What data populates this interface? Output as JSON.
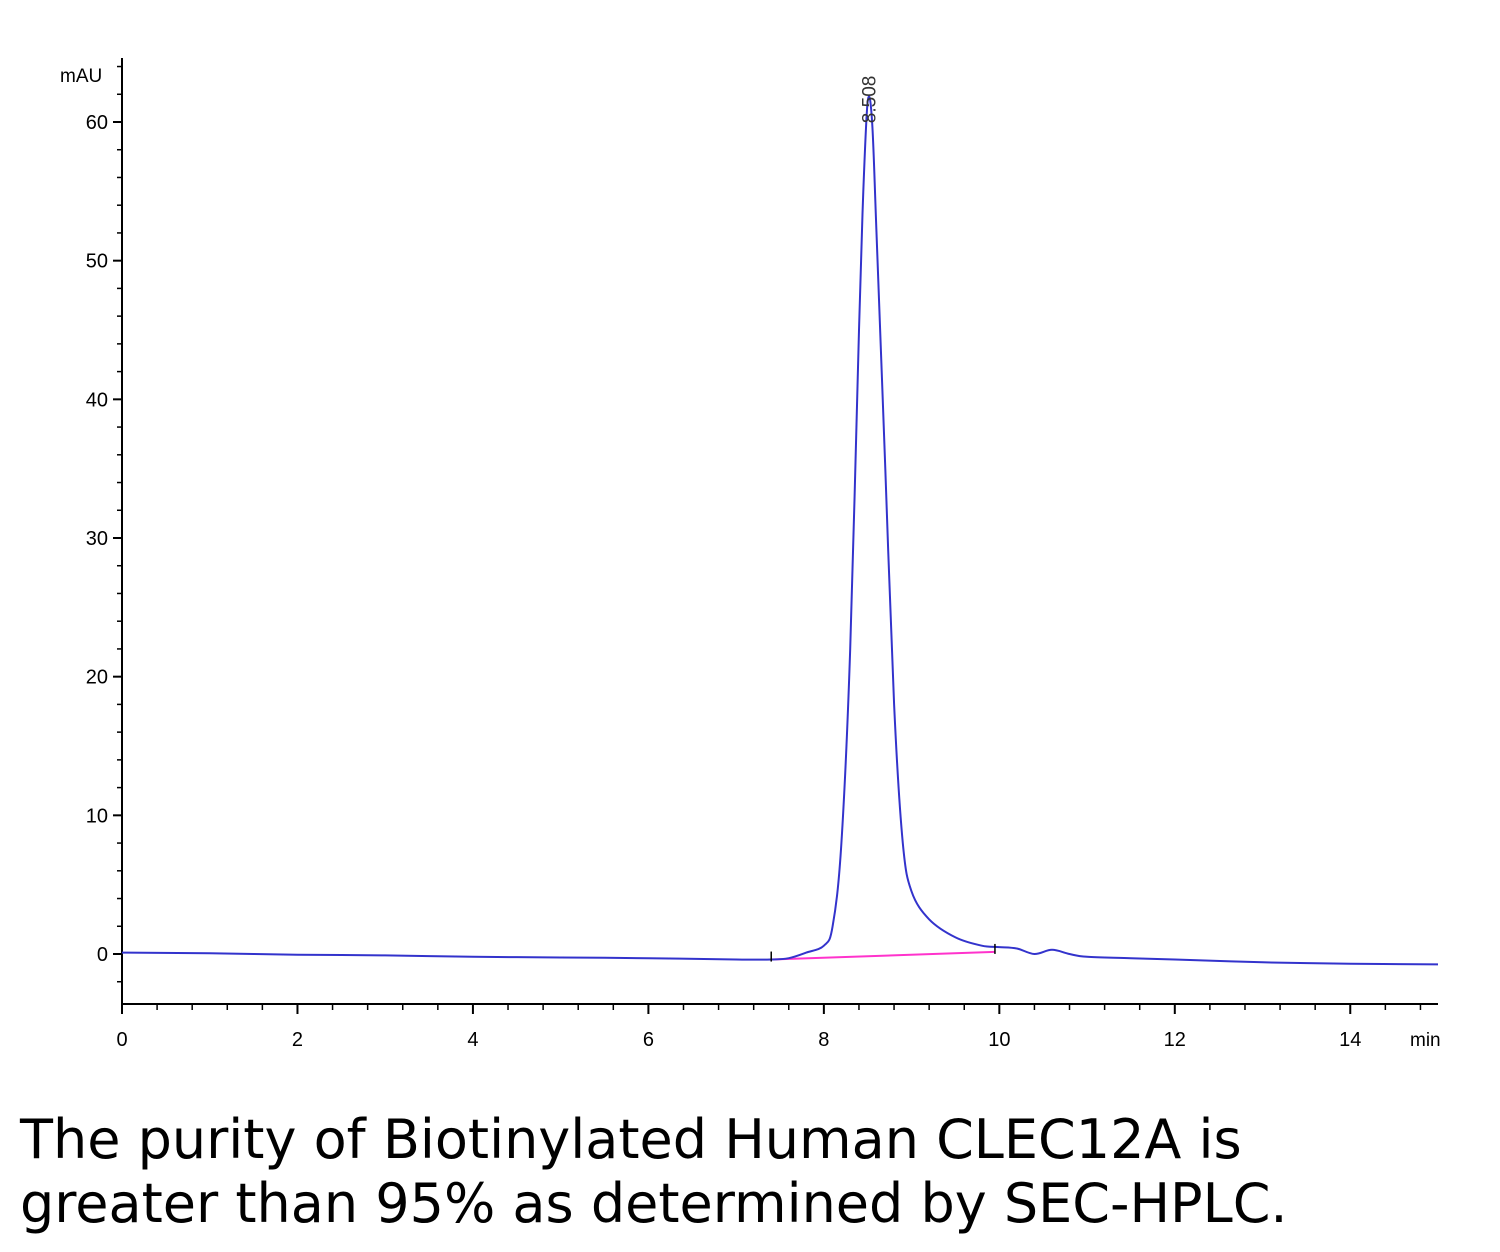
{
  "chart_data": {
    "type": "line",
    "title": "",
    "xlabel": "",
    "ylabel": "",
    "y_unit": "mAU",
    "x_unit": "min",
    "xlim": [
      0,
      15
    ],
    "ylim": [
      -3.5,
      66
    ],
    "x_ticks": [
      0,
      2,
      4,
      6,
      8,
      10,
      12,
      14
    ],
    "y_ticks": [
      0,
      10,
      20,
      30,
      40,
      50,
      60
    ],
    "grid": false,
    "line_color": "#3333cc",
    "baseline_color": "#ff33cc",
    "series": [
      {
        "points": [
          [
            0,
            0.1
          ],
          [
            1,
            0.05
          ],
          [
            2,
            -0.05
          ],
          [
            3,
            -0.1
          ],
          [
            4,
            -0.2
          ],
          [
            5,
            -0.25
          ],
          [
            6,
            -0.3
          ],
          [
            7,
            -0.4
          ],
          [
            7.4,
            -0.4
          ],
          [
            7.6,
            -0.3
          ],
          [
            7.8,
            0.1
          ],
          [
            8.0,
            0.6
          ],
          [
            8.1,
            2
          ],
          [
            8.2,
            8
          ],
          [
            8.3,
            22
          ],
          [
            8.4,
            45
          ],
          [
            8.45,
            55
          ],
          [
            8.5,
            61.5
          ],
          [
            8.55,
            60
          ],
          [
            8.6,
            52
          ],
          [
            8.7,
            35
          ],
          [
            8.8,
            18
          ],
          [
            8.9,
            8
          ],
          [
            9.0,
            4.5
          ],
          [
            9.2,
            2.5
          ],
          [
            9.5,
            1.2
          ],
          [
            9.8,
            0.6
          ],
          [
            10.0,
            0.5
          ],
          [
            10.2,
            0.4
          ],
          [
            10.4,
            0.0
          ],
          [
            10.6,
            0.3
          ],
          [
            10.8,
            0.0
          ],
          [
            11.0,
            -0.2
          ],
          [
            11.5,
            -0.3
          ],
          [
            12.0,
            -0.4
          ],
          [
            13.0,
            -0.6
          ],
          [
            14.0,
            -0.7
          ],
          [
            15.0,
            -0.75
          ]
        ]
      }
    ],
    "baseline": [
      [
        7.4,
        -0.4
      ],
      [
        9.95,
        0.15
      ]
    ],
    "annotations": [
      {
        "text": "8.508",
        "x": 8.508,
        "y": 61.5
      }
    ]
  },
  "caption": {
    "line1": "The purity of Biotinylated Human CLEC12A is",
    "line2": "greater than 95% as determined by SEC-HPLC."
  }
}
